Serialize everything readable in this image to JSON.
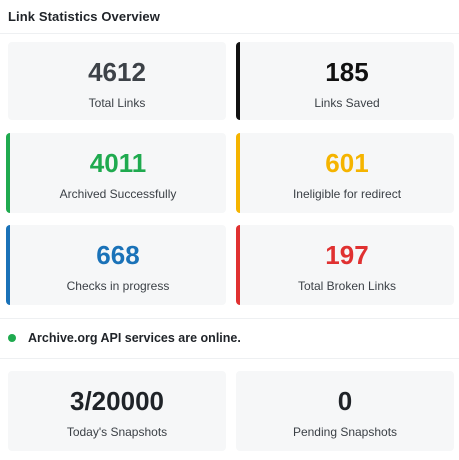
{
  "header": {
    "title": "Link Statistics Overview"
  },
  "stats": [
    {
      "value": "4612",
      "label": "Total Links",
      "value_color": "#3d4248"
    },
    {
      "value": "185",
      "label": "Links Saved",
      "value_color": "#111111",
      "accent_color": "#111111"
    },
    {
      "value": "4011",
      "label": "Archived Successfully",
      "value_color": "#1faa4f",
      "accent_color": "#1faa4f"
    },
    {
      "value": "601",
      "label": "Ineligible for redirect",
      "value_color": "#f5b400",
      "accent_color": "#f5b400"
    },
    {
      "value": "668",
      "label": "Checks in progress",
      "value_color": "#1a72b8",
      "accent_color": "#1a72b8"
    },
    {
      "value": "197",
      "label": "Total Broken Links",
      "value_color": "#e03131",
      "accent_color": "#e03131"
    }
  ],
  "status": {
    "text": "Archive.org API services are online.",
    "dot_color": "#1faa4f",
    "icon": "status-dot-icon"
  },
  "snapshots": [
    {
      "value": "3/20000",
      "label": "Today's Snapshots",
      "value_color": "#1f2328"
    },
    {
      "value": "0",
      "label": "Pending Snapshots",
      "value_color": "#1f2328"
    }
  ]
}
